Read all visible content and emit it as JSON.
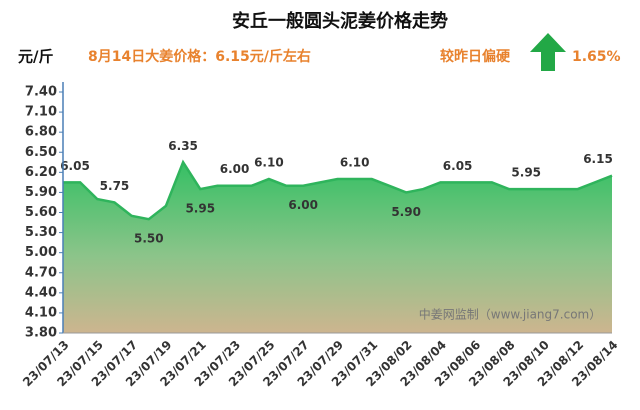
{
  "chart_data": {
    "type": "area",
    "title": "安丘一般圆头泥姜价格走势",
    "y_label": "元/斤",
    "subtitle": "8月14日大姜价格：6.15元/斤左右",
    "change_label": "较昨日偏硬",
    "change_value": "1.65%",
    "watermark": "中姜网监制（www.jiang7.com）",
    "categories": [
      "23/07/13",
      null,
      "23/07/15",
      null,
      "23/07/17",
      null,
      "23/07/19",
      null,
      "23/07/21",
      null,
      "23/07/23",
      null,
      "23/07/25",
      null,
      "23/07/27",
      null,
      "23/07/29",
      null,
      "23/07/31",
      null,
      "23/08/02",
      null,
      "23/08/04",
      null,
      "23/08/06",
      null,
      "23/08/08",
      null,
      "23/08/10",
      null,
      "23/08/12",
      null,
      "23/08/14"
    ],
    "values": [
      6.05,
      6.05,
      5.8,
      5.75,
      5.55,
      5.5,
      5.7,
      6.35,
      5.95,
      6.0,
      6.0,
      6.0,
      6.1,
      6.0,
      6.0,
      6.05,
      6.1,
      6.1,
      6.1,
      6.0,
      5.9,
      5.95,
      6.05,
      6.05,
      6.05,
      6.05,
      5.95,
      5.95,
      5.95,
      5.95,
      5.95,
      6.05,
      6.15
    ],
    "value_labels": [
      "6.05",
      null,
      null,
      "5.75",
      null,
      "5.50",
      null,
      "6.35",
      "5.95",
      null,
      "6.00",
      null,
      "6.10",
      null,
      "6.00",
      null,
      null,
      "6.10",
      null,
      null,
      "5.90",
      null,
      null,
      "6.05",
      null,
      null,
      null,
      "5.95",
      null,
      null,
      null,
      null,
      "6.15"
    ],
    "color": "#2fb45c",
    "ylim": [
      3.8,
      7.4
    ],
    "yticks": [
      {
        "value": 3.8,
        "label": "3.80"
      },
      {
        "value": 4.1,
        "label": "4.10"
      },
      {
        "value": 4.4,
        "label": "4.40"
      },
      {
        "value": 4.7,
        "label": "4.70"
      },
      {
        "value": 5.0,
        "label": "5.00"
      },
      {
        "value": 5.3,
        "label": "5.30"
      },
      {
        "value": 5.6,
        "label": "5.60"
      },
      {
        "value": 5.9,
        "label": "5.90"
      },
      {
        "value": 6.2,
        "label": "6.20"
      },
      {
        "value": 6.5,
        "label": "6.50"
      },
      {
        "value": 6.8,
        "label": "6.80"
      },
      {
        "value": 7.1,
        "label": "7.10"
      },
      {
        "value": 7.4,
        "label": "7.40"
      }
    ],
    "grid": false
  }
}
